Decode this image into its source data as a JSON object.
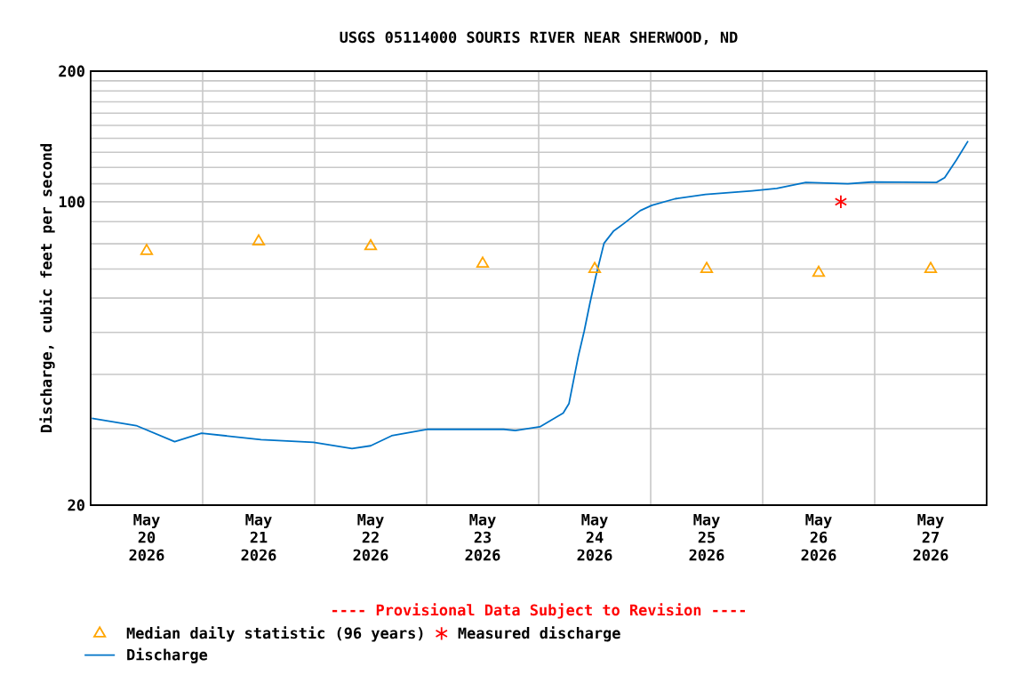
{
  "chart_data": {
    "type": "line",
    "title": "USGS 05114000 SOURIS RIVER NEAR SHERWOOD, ND",
    "ylabel": "Discharge, cubic feet per second",
    "annotations": [
      "---- Provisional Data Subject to Revision ----"
    ],
    "log": "y",
    "grid": true,
    "legend": "bottom",
    "xlim": [
      "2026-05-20T00:00",
      "2026-05-28T00:00"
    ],
    "xticks": [
      {
        "value": "2026-05-20T12:00",
        "label": "May 20 2026"
      },
      {
        "value": "2026-05-21T00:00",
        "label": null
      },
      {
        "value": "2026-05-21T12:00",
        "label": "May 21 2026"
      },
      {
        "value": "2026-05-22T00:00",
        "label": null
      },
      {
        "value": "2026-05-22T12:00",
        "label": "May 22 2026"
      },
      {
        "value": "2026-05-23T00:00",
        "label": null
      },
      {
        "value": "2026-05-23T12:00",
        "label": "May 23 2026"
      },
      {
        "value": "2026-05-24T00:00",
        "label": null
      },
      {
        "value": "2026-05-24T12:00",
        "label": "May 24 2026"
      },
      {
        "value": "2026-05-25T00:00",
        "label": null
      },
      {
        "value": "2026-05-25T12:00",
        "label": "May 25 2026"
      },
      {
        "value": "2026-05-26T00:00",
        "label": null
      },
      {
        "value": "2026-05-26T12:00",
        "label": "May 26 2026"
      },
      {
        "value": "2026-05-27T00:00",
        "label": null
      },
      {
        "value": "2026-05-27T12:00",
        "label": "May 27 2026"
      }
    ],
    "ylim": [
      20,
      200
    ],
    "yticks": [
      20,
      {
        "value": 30,
        "label": null
      },
      {
        "value": 40,
        "label": null
      },
      {
        "value": 50,
        "label": null
      },
      {
        "value": 60,
        "label": null
      },
      {
        "value": 70,
        "label": null
      },
      {
        "value": 80,
        "label": null
      },
      {
        "value": 90,
        "label": null
      },
      100,
      {
        "value": 110,
        "label": null
      },
      {
        "value": 120,
        "label": null
      },
      {
        "value": 130,
        "label": null
      },
      {
        "value": 140,
        "label": null
      },
      {
        "value": 150,
        "label": null
      },
      {
        "value": 160,
        "label": null
      },
      {
        "value": 170,
        "label": null
      },
      {
        "value": 180,
        "label": null
      },
      {
        "value": 190,
        "label": null
      },
      200
    ],
    "series": [
      {
        "name": "Median daily statistic (96 years)",
        "type": "scatter",
        "marker": "triangle",
        "color": "#ffa500",
        "x": [
          "2026-05-20T12:00",
          "2026-05-21T12:00",
          "2026-05-22T12:00",
          "2026-05-23T12:00",
          "2026-05-24T12:00",
          "2026-05-25T12:00",
          "2026-05-26T12:00",
          "2026-05-27T12:00"
        ],
        "values": [
          77,
          81,
          79,
          72,
          70,
          70,
          68.6,
          70
        ]
      },
      {
        "name": "Measured discharge",
        "type": "scatter",
        "marker": "cross",
        "color": "#ff0000",
        "x": [
          "2026-05-26T16:45"
        ],
        "values": [
          100
        ]
      },
      {
        "name": "Discharge",
        "type": "line",
        "marker": "none",
        "color": "#0074c8",
        "x": [
          "2026-05-20T00:15",
          "2026-05-20T09:45",
          "2026-05-20T18:00",
          "2026-05-20T23:45",
          "2026-05-21T12:30",
          "2026-05-21T23:45",
          "2026-05-22T08:00",
          "2026-05-22T12:00",
          "2026-05-22T16:30",
          "2026-05-23T00:00",
          "2026-05-23T16:30",
          "2026-05-23T19:00",
          "2026-05-24T00:15",
          "2026-05-24T05:15",
          "2026-05-24T06:30",
          "2026-05-24T08:30",
          "2026-05-24T09:45",
          "2026-05-24T11:00",
          "2026-05-24T12:15",
          "2026-05-24T14:00",
          "2026-05-24T16:00",
          "2026-05-24T18:30",
          "2026-05-24T21:45",
          "2026-05-25T00:15",
          "2026-05-25T05:15",
          "2026-05-25T11:45",
          "2026-05-25T21:45",
          "2026-05-26T03:00",
          "2026-05-26T09:15",
          "2026-05-26T18:15",
          "2026-05-26T23:15",
          "2026-05-27T13:15",
          "2026-05-27T15:00",
          "2026-05-27T17:30",
          "2026-05-27T20:00"
        ],
        "values": [
          31.7,
          30.5,
          28.0,
          29.3,
          28.3,
          27.9,
          27.0,
          27.4,
          28.9,
          29.9,
          29.9,
          29.7,
          30.3,
          32.6,
          34.3,
          44.1,
          50.3,
          58.5,
          67.3,
          80.2,
          85.5,
          89.5,
          95.4,
          98.1,
          101.6,
          104,
          106,
          107.3,
          110.8,
          110,
          111,
          110.8,
          113.6,
          124.8,
          138
        ]
      }
    ]
  }
}
